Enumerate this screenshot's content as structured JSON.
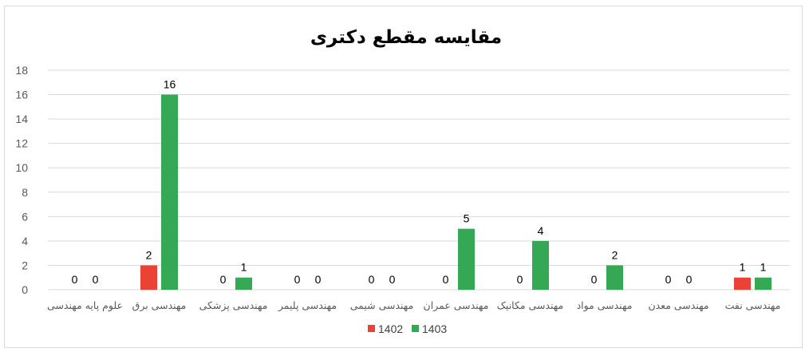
{
  "chart_data": {
    "type": "bar",
    "title": "مقایسه مقطع دکتری",
    "categories": [
      "علوم پایه مهندسی",
      "مهندسی برق",
      "مهندسی پزشکی",
      "مهندسی پلیمر",
      "مهندسی شیمی",
      "مهندسی عمران",
      "مهندسی مکانیک",
      "مهندسی مواد",
      "مهندسی معدن",
      "مهندسی نفت"
    ],
    "series": [
      {
        "name": "1402",
        "color": "#ea4335",
        "values": [
          0,
          2,
          0,
          0,
          0,
          0,
          0,
          0,
          0,
          1
        ]
      },
      {
        "name": "1403",
        "color": "#34a853",
        "values": [
          0,
          16,
          1,
          0,
          0,
          5,
          4,
          2,
          0,
          1
        ]
      }
    ],
    "ylim": [
      0,
      18
    ],
    "yticks": [
      0,
      2,
      4,
      6,
      8,
      10,
      12,
      14,
      16,
      18
    ],
    "grid": true,
    "legend_position": "bottom",
    "data_labels": true
  }
}
